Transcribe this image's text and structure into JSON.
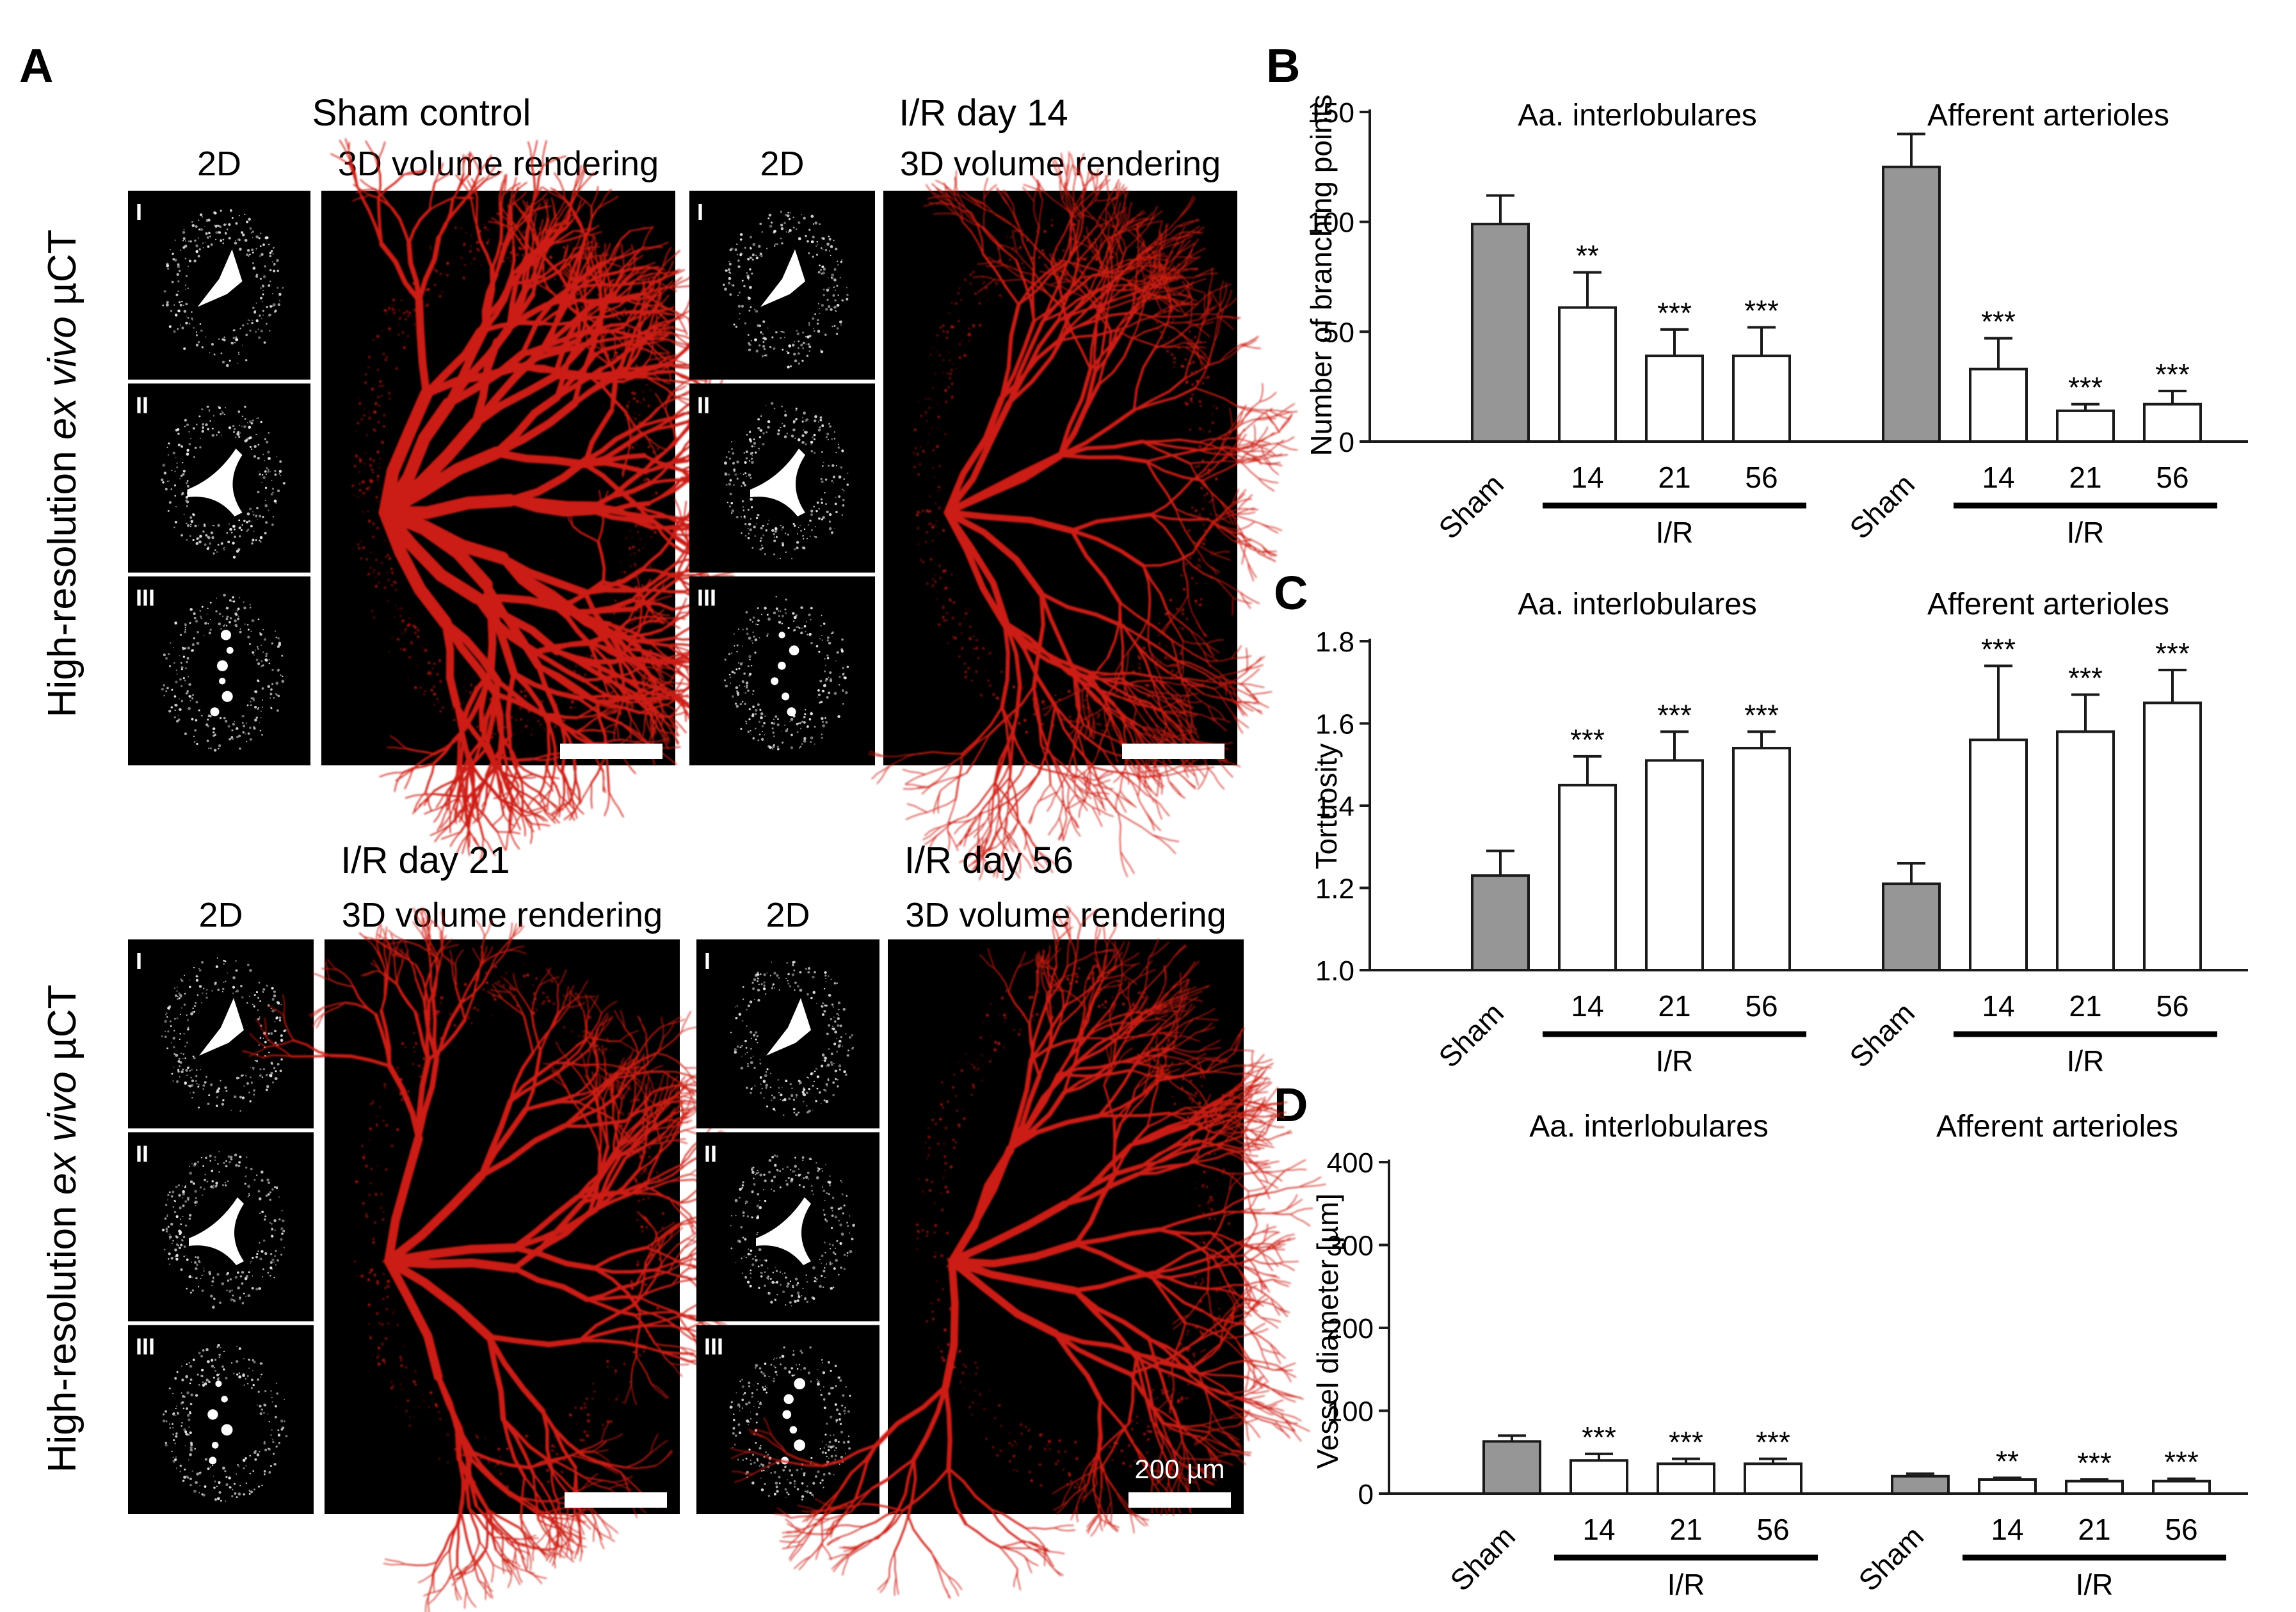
{
  "panel_letters": {
    "a": "A",
    "b": "B",
    "c": "C",
    "d": "D"
  },
  "imaging": {
    "axis_label_parts": [
      "High-resolution ",
      "ex vivo",
      " µCT"
    ],
    "groups": [
      {
        "title": "Sham control",
        "col2d": "2D",
        "col3d": "3D volume rendering"
      },
      {
        "title": "I/R day 14",
        "col2d": "2D",
        "col3d": "3D volume rendering"
      },
      {
        "title": "I/R day 21",
        "col2d": "2D",
        "col3d": "3D volume rendering"
      },
      {
        "title": "I/R day 56",
        "col2d": "2D",
        "col3d": "3D volume rendering"
      }
    ],
    "slices": [
      "I",
      "II",
      "III"
    ],
    "scale_bar_label": "200 µm",
    "colors": {
      "vessel": "#cc1c12",
      "background": "#000000",
      "slice": "#ffffff"
    }
  },
  "chart_data": [
    {
      "panel": "B",
      "type": "bar",
      "ylabel": "Number of branching points",
      "ylim": [
        0,
        150
      ],
      "yticks": [
        0,
        50,
        100,
        150
      ],
      "groups": [
        {
          "title": "Aa. interlobulares",
          "categories": [
            "Sham",
            "14",
            "21",
            "56"
          ],
          "values": [
            99,
            61,
            39,
            39
          ],
          "errors": [
            13,
            16,
            12,
            13
          ],
          "significance": [
            "",
            "**",
            "***",
            "***"
          ],
          "bracket_label": "I/R"
        },
        {
          "title": "Afferent arterioles",
          "categories": [
            "Sham",
            "14",
            "21",
            "56"
          ],
          "values": [
            125,
            33,
            14,
            17
          ],
          "errors": [
            15,
            14,
            3,
            6
          ],
          "significance": [
            "",
            "***",
            "***",
            "***"
          ],
          "bracket_label": "I/R"
        }
      ]
    },
    {
      "panel": "C",
      "type": "bar",
      "ylabel": "Tortuosity",
      "ylim": [
        1.0,
        1.8
      ],
      "yticks": [
        "1.0",
        "1.2",
        "1.4",
        "1.6",
        "1.8"
      ],
      "groups": [
        {
          "title": "Aa. interlobulares",
          "categories": [
            "Sham",
            "14",
            "21",
            "56"
          ],
          "values": [
            1.23,
            1.45,
            1.51,
            1.54
          ],
          "errors": [
            0.06,
            0.07,
            0.07,
            0.04
          ],
          "significance": [
            "",
            "***",
            "***",
            "***"
          ],
          "bracket_label": "I/R"
        },
        {
          "title": "Afferent arterioles",
          "categories": [
            "Sham",
            "14",
            "21",
            "56"
          ],
          "values": [
            1.21,
            1.56,
            1.58,
            1.65
          ],
          "errors": [
            0.05,
            0.18,
            0.09,
            0.08
          ],
          "significance": [
            "",
            "***",
            "***",
            "***"
          ],
          "bracket_label": "I/R"
        }
      ]
    },
    {
      "panel": "D",
      "type": "bar",
      "ylabel": "Vessel diameter [µm]",
      "ylim": [
        0,
        400
      ],
      "yticks": [
        0,
        100,
        200,
        300,
        400
      ],
      "groups": [
        {
          "title": "Aa. interlobulares",
          "categories": [
            "Sham",
            "14",
            "21",
            "56"
          ],
          "values": [
            63,
            40,
            36,
            36
          ],
          "errors": [
            7,
            8,
            6,
            6
          ],
          "significance": [
            "",
            "***",
            "***",
            "***"
          ],
          "bracket_label": "I/R"
        },
        {
          "title": "Afferent arterioles",
          "categories": [
            "Sham",
            "14",
            "21",
            "56"
          ],
          "values": [
            21,
            17,
            15,
            15
          ],
          "errors": [
            3,
            2,
            2,
            3
          ],
          "significance": [
            "",
            "**",
            "***",
            "***"
          ],
          "bracket_label": "I/R"
        }
      ]
    }
  ],
  "colors": {
    "sham_bar": "#969696",
    "ir_bar": "#ffffff",
    "axis": "#1a1a1a"
  }
}
